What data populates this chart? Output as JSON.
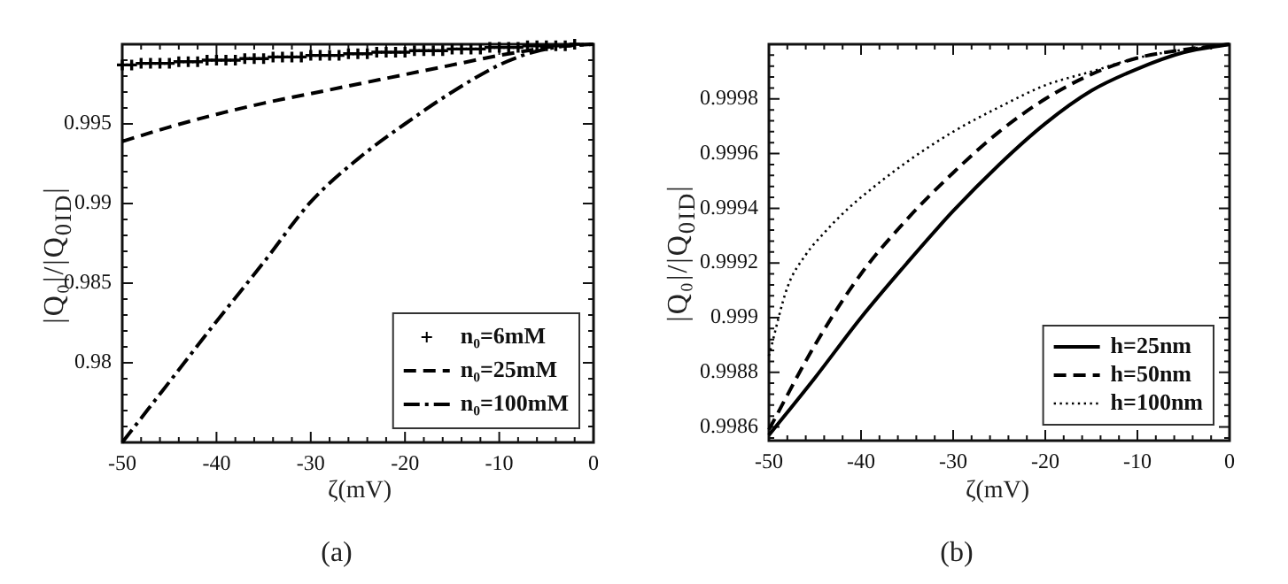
{
  "chart_data": [
    {
      "type": "line",
      "xlabel": "ζ(mV)",
      "ylabel": "|Q₀|/|Q$_{0ID}$|",
      "annotations": [
        "(a)"
      ],
      "xlim": [
        -50,
        0
      ],
      "xticks": [
        -50,
        -40,
        -30,
        -20,
        -10,
        0
      ],
      "ylim": [
        0.975,
        1.0
      ],
      "yticks": [
        0.98,
        0.985,
        0.99,
        0.995
      ],
      "grid": false,
      "legend": "bottom right",
      "series": [
        {
          "name": "n₀=6mM",
          "type": "scatter",
          "marker": "cross",
          "color": "#000000",
          "x": [
            -50,
            -49,
            -48,
            -47,
            -46,
            -45,
            -44,
            -43,
            -42,
            -41,
            -40,
            -39,
            -38,
            -37,
            -36,
            -35,
            -34,
            -33,
            -32,
            -31,
            -30,
            -29,
            -28,
            -27,
            -26,
            -25,
            -24,
            -23,
            -22,
            -21,
            -20,
            -19,
            -18,
            -17,
            -16,
            -15,
            -14,
            -13,
            -12,
            -11,
            -10,
            -9,
            -8,
            -7,
            -6,
            -5,
            -4,
            -3,
            -2
          ],
          "values": [
            0.9987,
            0.9987,
            0.9988,
            0.9988,
            0.9988,
            0.9988,
            0.9989,
            0.9989,
            0.9989,
            0.999,
            0.999,
            0.999,
            0.999,
            0.9991,
            0.9991,
            0.9991,
            0.9992,
            0.9992,
            0.9992,
            0.9992,
            0.9993,
            0.9993,
            0.9993,
            0.9993,
            0.9994,
            0.9994,
            0.9994,
            0.9995,
            0.9995,
            0.9995,
            0.9995,
            0.9996,
            0.9996,
            0.9996,
            0.9996,
            0.9997,
            0.9997,
            0.9997,
            0.9997,
            0.9998,
            0.9998,
            0.9998,
            0.9998,
            0.9999,
            0.9999,
            0.9999,
            0.9999,
            0.9999,
            1.0
          ]
        },
        {
          "name": "n₀=25mM",
          "line_style": "dashed",
          "color": "#000000",
          "x": [
            -50,
            -45,
            -40,
            -35,
            -30,
            -25,
            -20,
            -15,
            -10,
            -7,
            -5,
            -3,
            0
          ],
          "values": [
            0.9939,
            0.9948,
            0.9956,
            0.9963,
            0.9969,
            0.9975,
            0.9981,
            0.9987,
            0.9993,
            0.9996,
            0.9998,
            0.9999,
            1.0
          ]
        },
        {
          "name": "n₀=100mM",
          "line_style": "dashdot",
          "color": "#000000",
          "x": [
            -50,
            -45,
            -40,
            -35,
            -30,
            -25,
            -20,
            -15,
            -10,
            -7,
            -5,
            -3,
            0
          ],
          "values": [
            0.975,
            0.9788,
            0.9826,
            0.9863,
            0.9901,
            0.9928,
            0.995,
            0.997,
            0.9987,
            0.9994,
            0.9997,
            0.9999,
            1.0
          ]
        }
      ]
    },
    {
      "type": "line",
      "xlabel": "ζ(mV)",
      "ylabel": "|Q₀|/|Q$_{0ID}$|",
      "annotations": [
        "(b)"
      ],
      "xlim": [
        -50,
        0
      ],
      "xticks": [
        -50,
        -40,
        -30,
        -20,
        -10,
        0
      ],
      "ylim": [
        0.99855,
        1.0
      ],
      "yticks": [
        0.9986,
        0.9988,
        0.999,
        0.9992,
        0.9994,
        0.9996,
        0.9998
      ],
      "grid": false,
      "legend": "bottom right",
      "x": [
        -50,
        -45,
        -40,
        -35,
        -30,
        -25,
        -20,
        -15,
        -10,
        -5,
        0
      ],
      "series": [
        {
          "name": "h=25nm",
          "line_style": "solid",
          "color": "#000000",
          "values": [
            0.99857,
            0.99878,
            0.999,
            0.9992,
            0.99939,
            0.99956,
            0.99971,
            0.99983,
            0.99991,
            0.99997,
            1.0
          ]
        },
        {
          "name": "h=50nm",
          "line_style": "dashed",
          "color": "#000000",
          "values": [
            0.99859,
            0.9989,
            0.99916,
            0.99936,
            0.99953,
            0.99968,
            0.9998,
            0.99989,
            0.99995,
            0.99998,
            1.0
          ]
        },
        {
          "name": "h=100nm",
          "line_style": "dotted",
          "color": "#000000",
          "x": [
            -50,
            -48,
            -46,
            -44,
            -42,
            -40,
            -35,
            -30,
            -25,
            -20,
            -15,
            -10,
            -5,
            0
          ],
          "values": [
            0.99886,
            0.99911,
            0.99923,
            0.99931,
            0.99938,
            0.99944,
            0.99957,
            0.99968,
            0.99977,
            0.99985,
            0.9999,
            0.99995,
            0.99998,
            1.0
          ]
        }
      ]
    }
  ]
}
